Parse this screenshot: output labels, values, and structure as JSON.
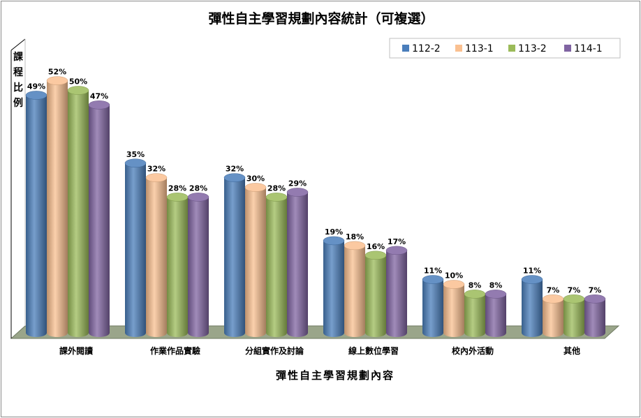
{
  "chart_data": {
    "type": "bar",
    "title": "彈性自主學習規劃內容統計（可複選）",
    "xlabel": "彈性自主學習規劃內容",
    "ylabel": "課程比例",
    "categories": [
      "課外閱讀",
      "作業作品實驗",
      "分組實作及討論",
      "線上數位學習",
      "校內外活動",
      "其他"
    ],
    "series": [
      {
        "name": "112-2",
        "color": "#4a7ebb",
        "values": [
          49,
          35,
          32,
          19,
          11,
          11
        ]
      },
      {
        "name": "113-1",
        "color": "#fac090",
        "values": [
          52,
          32,
          30,
          18,
          10,
          7
        ]
      },
      {
        "name": "113-2",
        "color": "#9bbb59",
        "values": [
          50,
          28,
          28,
          16,
          8,
          7
        ]
      },
      {
        "name": "114-1",
        "color": "#8064a2",
        "values": [
          47,
          28,
          29,
          17,
          8,
          7
        ]
      }
    ],
    "value_suffix": "%",
    "ylim": [
      0,
      60
    ],
    "legend_position": "top-right",
    "grid": false
  }
}
